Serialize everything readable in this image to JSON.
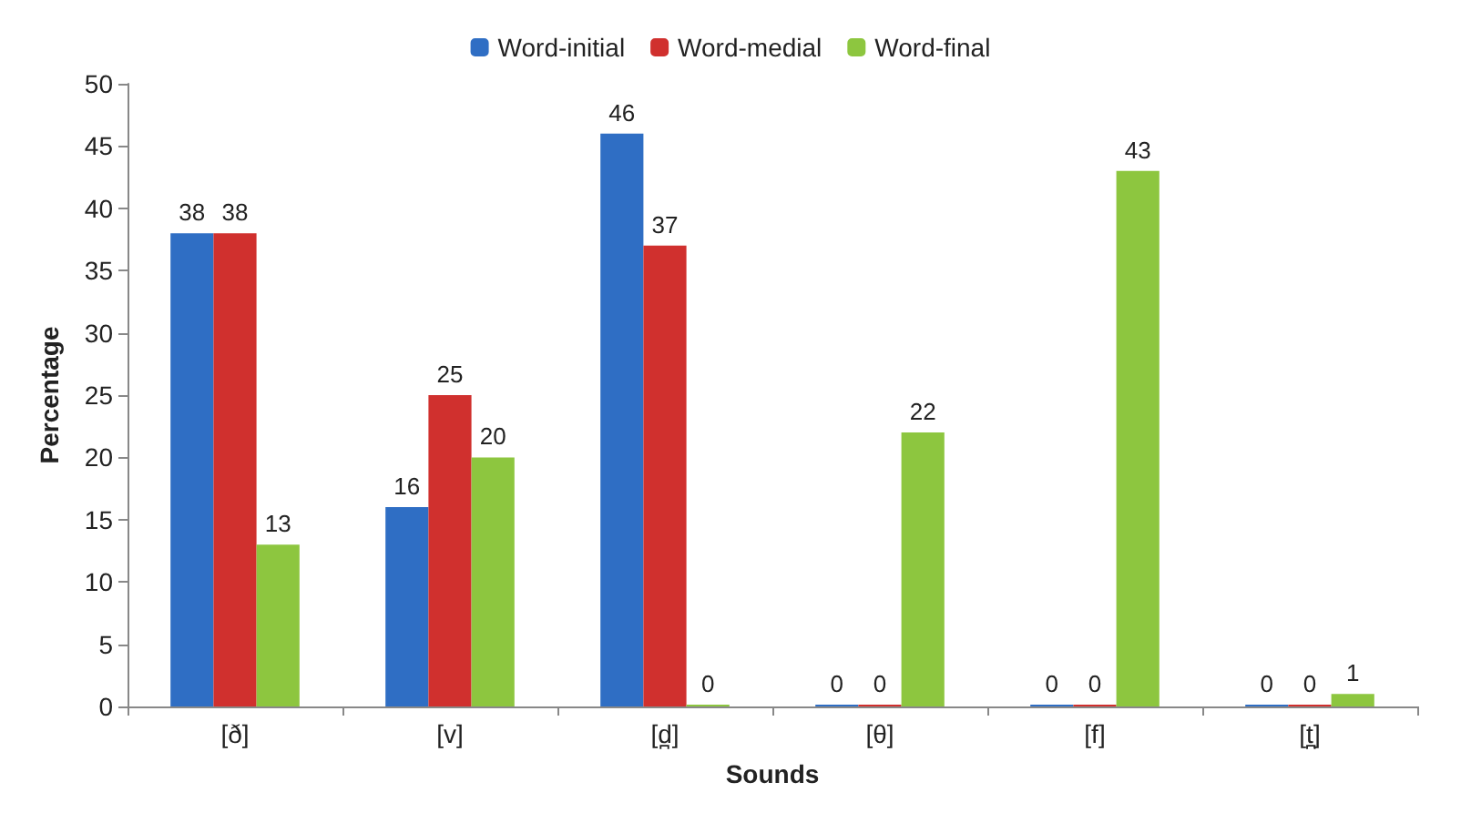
{
  "chart_data": {
    "type": "bar",
    "xlabel": "Sounds",
    "ylabel": "Percentage",
    "categories": [
      "[ð]",
      "[v]",
      "[d̪]",
      "[θ]",
      "[f]",
      "[t̪]"
    ],
    "series": [
      {
        "name": "Word-initial",
        "color": "#2f6ec4",
        "values": [
          38,
          16,
          46,
          0,
          0,
          0
        ]
      },
      {
        "name": "Word-medial",
        "color": "#d0302e",
        "values": [
          38,
          25,
          37,
          0,
          0,
          0
        ]
      },
      {
        "name": "Word-final",
        "color": "#8dc63f",
        "values": [
          13,
          20,
          0,
          22,
          43,
          1
        ]
      }
    ],
    "ylim": [
      0,
      50
    ],
    "yticks": [
      0,
      5,
      10,
      15,
      20,
      25,
      30,
      35,
      40,
      45,
      50
    ],
    "grid": false,
    "legend": "top",
    "data_labels": true
  }
}
